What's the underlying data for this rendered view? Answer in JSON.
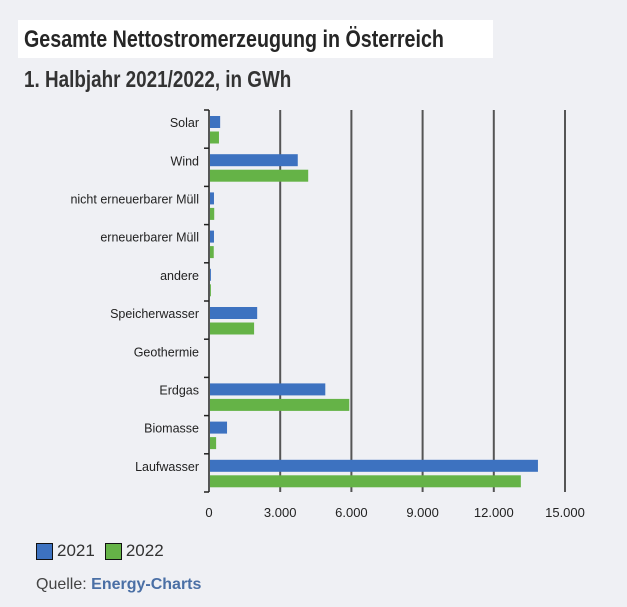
{
  "chart_data": {
    "type": "bar",
    "orientation": "horizontal",
    "title": "Gesamte Nettostromerzeugung in Österreich",
    "subtitle": "1. Halbjahr 2021/2022, in GWh",
    "categories": [
      "Solar",
      "Wind",
      "nicht erneuerbarer Müll",
      "erneuerbarer Müll",
      "andere",
      "Speicherwasser",
      "Geothermie",
      "Erdgas",
      "Biomasse",
      "Laufwasser"
    ],
    "series": [
      {
        "name": "2021",
        "color": "#3d72c0",
        "values": [
          470,
          3740,
          210,
          210,
          80,
          2030,
          2,
          4900,
          760,
          13860
        ]
      },
      {
        "name": "2022",
        "color": "#65b347",
        "values": [
          420,
          4180,
          220,
          200,
          80,
          1900,
          2,
          5910,
          300,
          13140
        ]
      }
    ],
    "xlim": [
      0,
      15000
    ],
    "xticks": [
      0,
      3000,
      6000,
      9000,
      12000,
      15000
    ],
    "xtick_labels": [
      "0",
      "3.000",
      "6.000",
      "9.000",
      "12.000",
      "15.000"
    ],
    "grid": true,
    "legend_position": "bottom-left"
  },
  "source": {
    "label": "Quelle:",
    "name": "Energy-Charts"
  }
}
